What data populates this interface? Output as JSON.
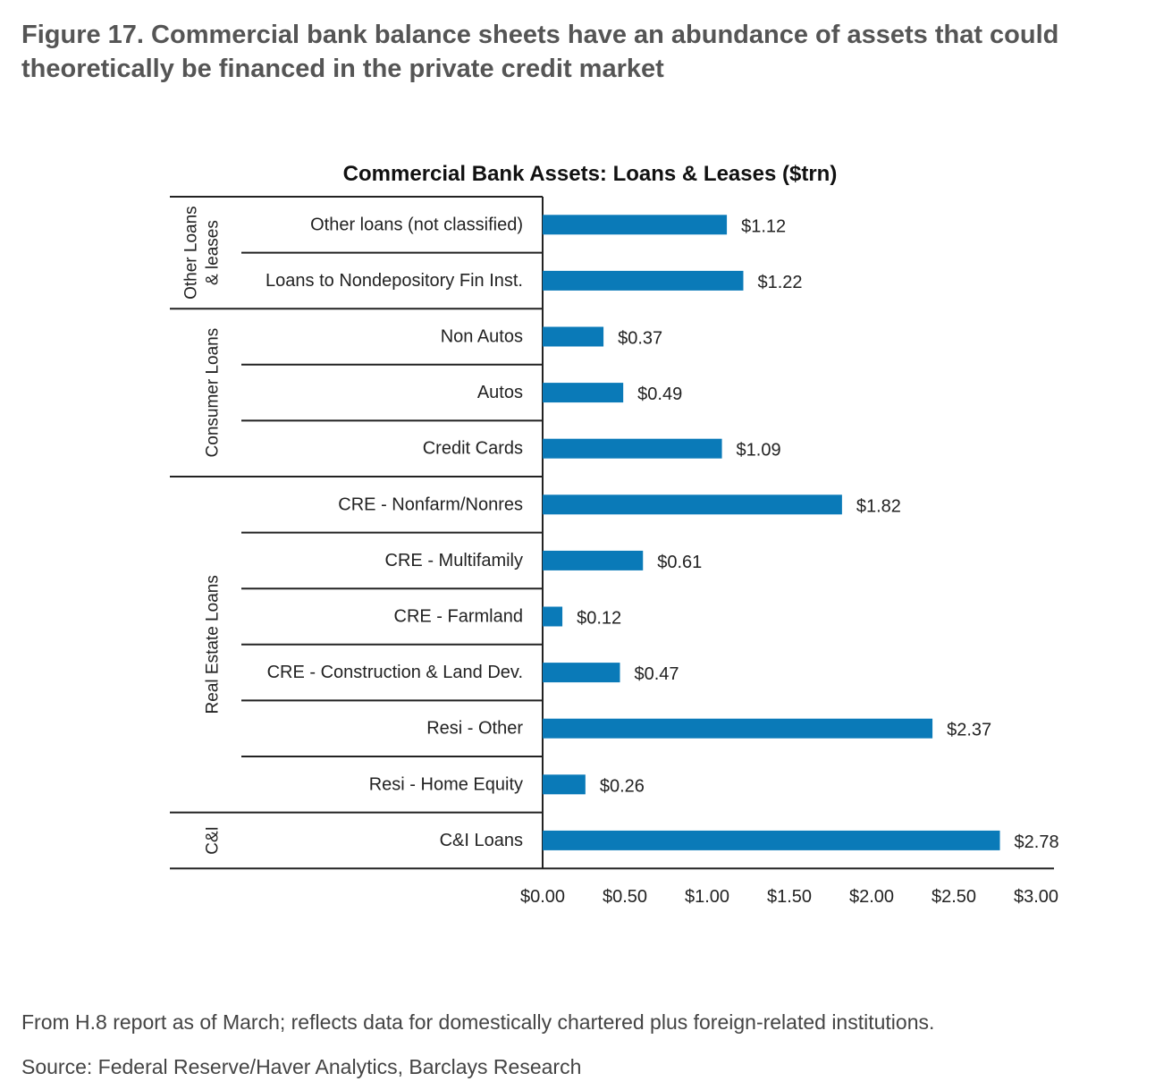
{
  "figure": {
    "title": "Figure 17. Commercial bank balance sheets have an abundance of assets that could theoretically be financed in the private credit market",
    "footnote": "From H.8 report as of March; reflects data for domestically chartered plus foreign-related institutions.",
    "source": "Source: Federal Reserve/Haver Analytics, Barclays Research"
  },
  "chart_data": {
    "type": "bar",
    "orientation": "horizontal",
    "title": "Commercial Bank Assets: Loans & Leases ($trn)",
    "bar_color": "#0a7ab8",
    "xlim": [
      0,
      3
    ],
    "xticks": [
      {
        "value": 0,
        "label": "$0.00"
      },
      {
        "value": 0.5,
        "label": "$0.50"
      },
      {
        "value": 1,
        "label": "$1.00"
      },
      {
        "value": 1.5,
        "label": "$1.50"
      },
      {
        "value": 2,
        "label": "$2.00"
      },
      {
        "value": 2.5,
        "label": "$2.50"
      },
      {
        "value": 3,
        "label": "$3.00"
      }
    ],
    "groups": [
      {
        "name": "Other Loans & leases",
        "label_lines": [
          "Other Loans",
          "& leases"
        ],
        "count": 2
      },
      {
        "name": "Consumer Loans",
        "label_lines": [
          "Consumer Loans"
        ],
        "count": 3
      },
      {
        "name": "Real Estate Loans",
        "label_lines": [
          "Real Estate Loans"
        ],
        "count": 6
      },
      {
        "name": "C&I",
        "label_lines": [
          "C&I"
        ],
        "count": 1
      }
    ],
    "categories": [
      "Other loans (not classified)",
      "Loans to Nondepository Fin Inst.",
      "Non Autos",
      "Autos",
      "Credit Cards",
      "CRE - Nonfarm/Nonres",
      "CRE - Multifamily",
      "CRE - Farmland",
      "CRE - Construction & Land Dev.",
      "Resi - Other",
      "Resi - Home Equity",
      "C&I Loans"
    ],
    "values": [
      1.12,
      1.22,
      0.37,
      0.49,
      1.09,
      1.82,
      0.61,
      0.12,
      0.47,
      2.37,
      0.26,
      2.78
    ],
    "value_labels": [
      "$1.12",
      "$1.22",
      "$0.37",
      "$0.49",
      "$1.09",
      "$1.82",
      "$0.61",
      "$0.12",
      "$0.47",
      "$2.37",
      "$0.26",
      "$2.78"
    ]
  }
}
